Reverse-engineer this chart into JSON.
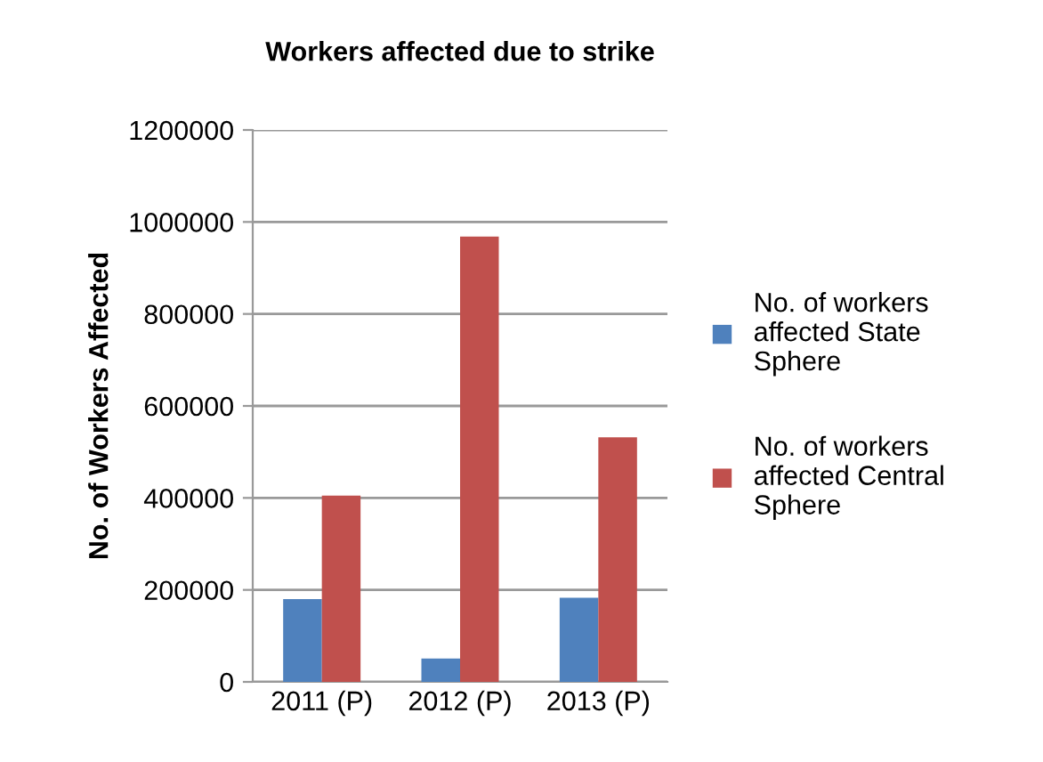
{
  "chart_data": {
    "type": "bar",
    "title": "Workers affected due to strike",
    "ylabel": "No. of Workers Affected",
    "categories": [
      "2011 (P)",
      "2012 (P)",
      "2013 (P)"
    ],
    "series": [
      {
        "name": "No. of workers affected State Sphere",
        "color": "#4f81bd",
        "values": [
          180000,
          51000,
          183000
        ]
      },
      {
        "name": "No. of workers affected Central Sphere",
        "color": "#c0504d",
        "values": [
          405000,
          968000,
          532000
        ]
      }
    ],
    "ylim": [
      0,
      1200000
    ],
    "yticks": [
      0,
      200000,
      400000,
      600000,
      800000,
      1000000,
      1200000
    ],
    "grid": "y",
    "legend": "right"
  }
}
